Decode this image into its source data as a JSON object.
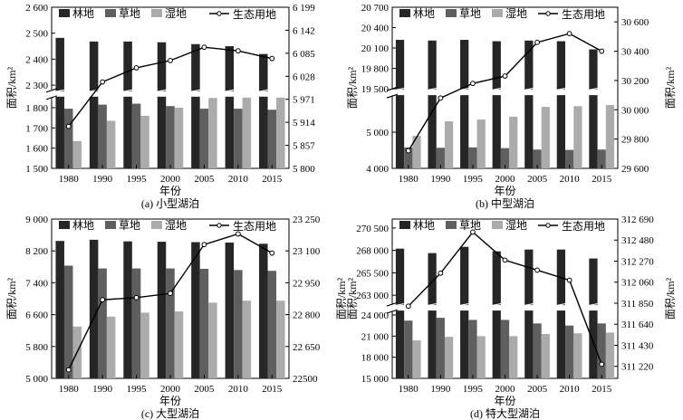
{
  "legend_labels": {
    "forest": "林地",
    "grass": "草地",
    "wet": "湿地",
    "eco": "生态用地"
  },
  "colors": {
    "forest": "#262626",
    "grass": "#5f5f5f",
    "wet": "#ababab",
    "line": "#000000",
    "marker_fill": "#ffffff"
  },
  "chart_data": [
    {
      "type": "bar",
      "panel_label": "(a) 小型湖泊",
      "xlabel": "年份",
      "ylabel_left": "面积/km²",
      "ylabel_right": "",
      "categories": [
        "1980",
        "1990",
        "1995",
        "2000",
        "2005",
        "2010",
        "2015"
      ],
      "left_axis": {
        "broken": true,
        "lower": {
          "min": 1500,
          "max": 1850,
          "ticks": [
            1500,
            1600,
            1700,
            1800
          ],
          "tick_labels": [
            "1 500",
            "1 600",
            "1 700",
            "1 800"
          ]
        },
        "upper": {
          "min": 2280,
          "max": 2600,
          "ticks": [
            2300,
            2400,
            2500,
            2600
          ],
          "tick_labels": [
            "2 300",
            "2 400",
            "2 500",
            "2 600"
          ]
        }
      },
      "right_axis": {
        "min": 5800,
        "max": 6199,
        "ticks": [
          5800,
          5857,
          5914,
          5971,
          6028,
          6085,
          6142,
          6199
        ],
        "tick_labels": [
          "5 800",
          "5 857",
          "5 914",
          "5 971",
          "6 028",
          "6 085",
          "6 142",
          "6 199"
        ]
      },
      "series": [
        {
          "name": "林地",
          "key": "forest",
          "axis": "left",
          "values": [
            2482,
            2468,
            2468,
            2465,
            2458,
            2450,
            2420
          ]
        },
        {
          "name": "草地",
          "key": "grass",
          "axis": "left",
          "values": [
            1795,
            1815,
            1820,
            1808,
            1795,
            1795,
            1790
          ]
        },
        {
          "name": "湿地",
          "key": "wet",
          "axis": "left",
          "values": [
            1635,
            1735,
            1760,
            1800,
            1848,
            1850,
            1850
          ]
        },
        {
          "name": "生态用地",
          "key": "eco",
          "axis": "right",
          "line": true,
          "values": [
            5904,
            6014,
            6049,
            6067,
            6100,
            6091,
            6072
          ]
        }
      ]
    },
    {
      "type": "bar",
      "panel_label": "(b) 中型湖泊",
      "xlabel": "年份",
      "ylabel_left": "面积/km²",
      "ylabel_right": "面积/km²",
      "categories": [
        "1980",
        "1990",
        "1995",
        "2000",
        "2005",
        "2010",
        "2015"
      ],
      "left_axis": {
        "broken": true,
        "lower": {
          "min": 4000,
          "max": 6000,
          "ticks": [
            4000,
            5000
          ],
          "tick_labels": [
            "4 000",
            "5 000"
          ]
        },
        "upper": {
          "min": 19500,
          "max": 20700,
          "ticks": [
            19500,
            19800,
            20100,
            20400,
            20700
          ],
          "tick_labels": [
            "19 500",
            "19 800",
            "20 100",
            "20 400",
            "20 700"
          ]
        }
      },
      "right_axis": {
        "min": 29600,
        "max": 30700,
        "ticks": [
          29600,
          29800,
          30000,
          30200,
          30400,
          30600
        ],
        "tick_labels": [
          "29 600",
          "29 800",
          "30 000",
          "30 200",
          "30 400",
          "30 600"
        ]
      },
      "series": [
        {
          "name": "林地",
          "key": "forest",
          "axis": "left",
          "values": [
            20220,
            20210,
            20220,
            20200,
            20210,
            20200,
            20080
          ]
        },
        {
          "name": "草地",
          "key": "grass",
          "axis": "left",
          "values": [
            4580,
            4570,
            4580,
            4560,
            4520,
            4510,
            4520
          ]
        },
        {
          "name": "湿地",
          "key": "wet",
          "axis": "left",
          "values": [
            4900,
            5300,
            5350,
            5430,
            5700,
            5720,
            5750
          ]
        },
        {
          "name": "生态用地",
          "key": "eco",
          "axis": "right",
          "line": true,
          "values": [
            29720,
            30080,
            30180,
            30230,
            30460,
            30520,
            30400
          ]
        }
      ]
    },
    {
      "type": "bar",
      "panel_label": "(c) 大型湖泊",
      "xlabel": "年份",
      "ylabel_left": "面积/km²",
      "ylabel_right": "面积/km²",
      "categories": [
        "1980",
        "1990",
        "1995",
        "2000",
        "2005",
        "2010",
        "2015"
      ],
      "left_axis": {
        "broken": false,
        "single": {
          "min": 5000,
          "max": 9000,
          "ticks": [
            5000,
            5800,
            6600,
            7400,
            8200,
            9000
          ],
          "tick_labels": [
            "5 000",
            "5 800",
            "6 600",
            "7 400",
            "8 200",
            "9 000"
          ]
        }
      },
      "right_axis": {
        "min": 22500,
        "max": 23250,
        "ticks": [
          22500,
          22650,
          22800,
          22950,
          23100,
          23250
        ],
        "tick_labels": [
          "22500",
          "22 650",
          "22 800",
          "22 950",
          "23 100",
          "23 250"
        ]
      },
      "series": [
        {
          "name": "林地",
          "key": "forest",
          "axis": "left",
          "values": [
            8450,
            8480,
            8440,
            8430,
            8420,
            8410,
            8380
          ]
        },
        {
          "name": "草地",
          "key": "grass",
          "axis": "left",
          "values": [
            7830,
            7760,
            7760,
            7760,
            7750,
            7720,
            7700
          ]
        },
        {
          "name": "湿地",
          "key": "wet",
          "axis": "left",
          "values": [
            6300,
            6550,
            6650,
            6680,
            6900,
            6950,
            6950
          ]
        },
        {
          "name": "生态用地",
          "key": "eco",
          "axis": "right",
          "line": true,
          "values": [
            22540,
            22870,
            22880,
            22900,
            23130,
            23180,
            23090
          ]
        }
      ]
    },
    {
      "type": "bar",
      "panel_label": "(d) 特大型湖泊",
      "xlabel": "年份",
      "ylabel_left": "面积/km²",
      "ylabel_right": "面积/km²",
      "categories": [
        "1980",
        "1990",
        "1995",
        "2000",
        "2005",
        "2010",
        "2015"
      ],
      "left_axis": {
        "broken": true,
        "lower": {
          "min": 15000,
          "max": 24500,
          "ticks": [
            15000,
            18000,
            21000,
            24000
          ],
          "tick_labels": [
            "15 000",
            "18 000",
            "21 000",
            "24 000"
          ]
        },
        "upper": {
          "min": 262000,
          "max": 271500,
          "ticks": [
            263000,
            265500,
            268000,
            270500
          ],
          "tick_labels": [
            "263 000",
            "265 500",
            "268 000",
            "270 500"
          ]
        }
      },
      "right_axis": {
        "min": 311100,
        "max": 312690,
        "ticks": [
          311220,
          311430,
          311640,
          311850,
          312060,
          312270,
          312480,
          312690
        ],
        "tick_labels": [
          "311 220",
          "311 430",
          "311 640",
          "311 850",
          "312 060",
          "312 270",
          "312 480",
          "312 690"
        ]
      },
      "series": [
        {
          "name": "林地",
          "key": "forest",
          "axis": "left",
          "values": [
            268200,
            267700,
            268400,
            267900,
            268100,
            268100,
            267100
          ]
        },
        {
          "name": "草地",
          "key": "grass",
          "axis": "left",
          "values": [
            23200,
            23600,
            23300,
            23300,
            22800,
            22500,
            22800
          ]
        },
        {
          "name": "湿地",
          "key": "wet",
          "axis": "left",
          "values": [
            20400,
            20900,
            21000,
            21000,
            21300,
            21400,
            21500
          ]
        },
        {
          "name": "生态用地",
          "key": "eco",
          "axis": "right",
          "line": true,
          "values": [
            311820,
            312150,
            312560,
            312280,
            312180,
            312080,
            311240
          ]
        }
      ]
    }
  ]
}
